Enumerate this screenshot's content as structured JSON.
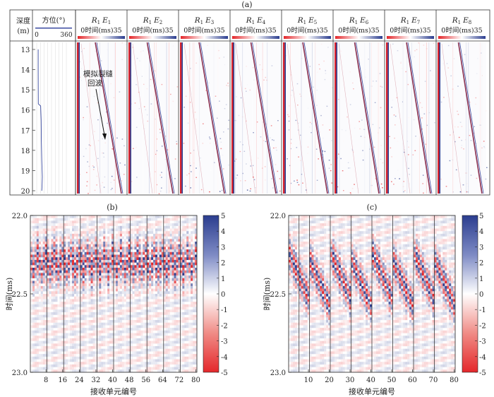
{
  "figure": {
    "panel_a_label": "(a)",
    "panel_b_label": "(b)",
    "panel_c_label": "(c)"
  },
  "panel_a": {
    "depth_header": "深度",
    "depth_unit": "(m)",
    "azimuth_header": "方位(°)",
    "azimuth_min": "0",
    "azimuth_max": "360",
    "time_axis_label": "0时间(ms)35",
    "annotation_line1": "模拟裂缝",
    "annotation_line2": "回波",
    "depth_ticks": [
      "13",
      "14",
      "15",
      "16",
      "17",
      "18",
      "19",
      "20"
    ],
    "receivers": [
      {
        "r": "R",
        "r_sub": "1",
        "e": "E",
        "e_sub": "1"
      },
      {
        "r": "R",
        "r_sub": "1",
        "e": "E",
        "e_sub": "2"
      },
      {
        "r": "R",
        "r_sub": "1",
        "e": "E",
        "e_sub": "3"
      },
      {
        "r": "R",
        "r_sub": "1",
        "e": "E",
        "e_sub": "4"
      },
      {
        "r": "R",
        "r_sub": "1",
        "e": "E",
        "e_sub": "5"
      },
      {
        "r": "R",
        "r_sub": "1",
        "e": "E",
        "e_sub": "6"
      },
      {
        "r": "R",
        "r_sub": "1",
        "e": "E",
        "e_sub": "7"
      },
      {
        "r": "R",
        "r_sub": "1",
        "e": "E",
        "e_sub": "8"
      }
    ],
    "azimuth_curve": [
      [
        13.0,
        18
      ],
      [
        14.0,
        18
      ],
      [
        15.0,
        19
      ],
      [
        15.7,
        20
      ],
      [
        15.8,
        48
      ],
      [
        16.5,
        54
      ],
      [
        17.5,
        57
      ],
      [
        18.5,
        62
      ],
      [
        19.3,
        68
      ],
      [
        19.8,
        64
      ],
      [
        20.0,
        62
      ]
    ]
  },
  "chart_data": [
    {
      "type": "heatmap",
      "panel": "b",
      "ylabel": "时间(ms)",
      "xlabel": "接收单元编号",
      "y_ticks": [
        "22.0",
        "22.5",
        "23.0"
      ],
      "ylim": [
        22.0,
        23.0
      ],
      "x_ticks": [
        "8",
        "16",
        "24",
        "32",
        "40",
        "48",
        "56",
        "64",
        "72",
        "80"
      ],
      "xlim": [
        1,
        80
      ],
      "colorbar_ticks": [
        "5",
        "4",
        "3",
        "2",
        "1",
        "0",
        "-1",
        "-2",
        "-3",
        "-4",
        "-5"
      ],
      "clim": [
        -5,
        5
      ],
      "colors": {
        "high": "#2b3d8f",
        "zero": "#ffffff",
        "low": "#e4272b"
      }
    },
    {
      "type": "heatmap",
      "panel": "c",
      "ylabel": "时间(ms)",
      "xlabel": "接收单元编号",
      "y_ticks": [
        "22.0",
        "22.5",
        "23.0"
      ],
      "ylim": [
        22.0,
        23.0
      ],
      "x_ticks": [
        "10",
        "20",
        "30",
        "40",
        "50",
        "60",
        "70",
        "80"
      ],
      "xlim": [
        1,
        80
      ],
      "colorbar_ticks": [
        "5",
        "4",
        "3",
        "2",
        "1",
        "0",
        "-1",
        "-2",
        "-3",
        "-4",
        "-5"
      ],
      "clim": [
        -5,
        5
      ],
      "colors": {
        "high": "#2b3d8f",
        "zero": "#ffffff",
        "low": "#e4272b"
      }
    }
  ]
}
